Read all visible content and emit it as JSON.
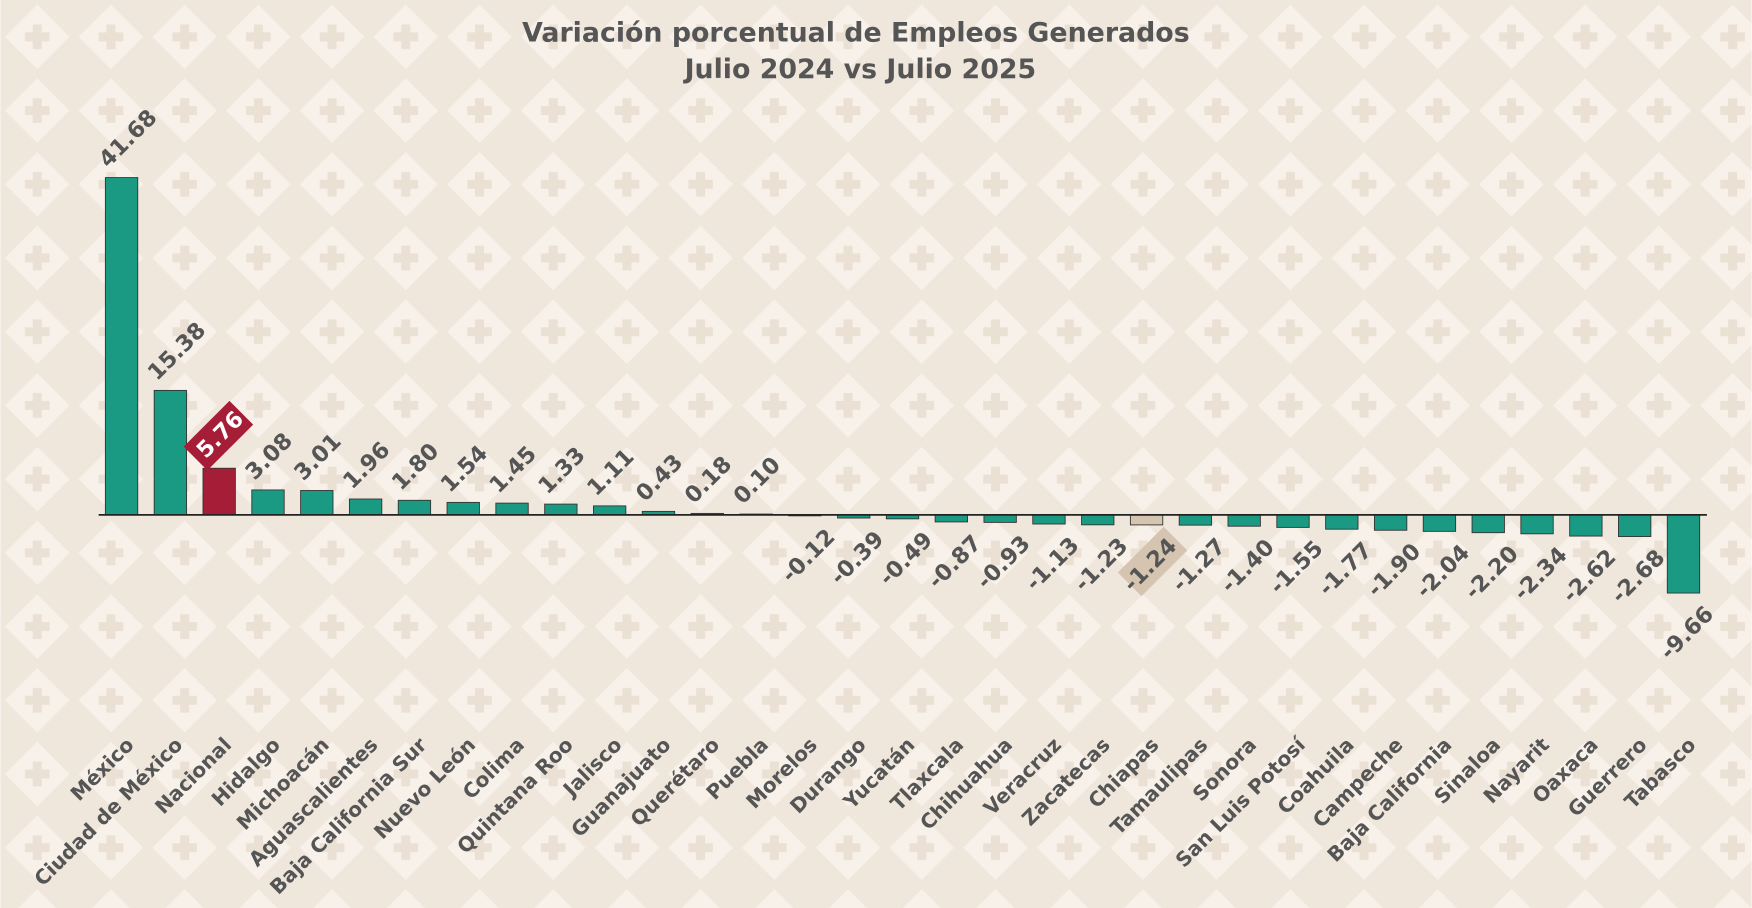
{
  "chart_data": {
    "type": "bar",
    "title": "Variación porcentual de Empleos Generados",
    "subtitle": "Julio 2024 vs Julio 2025",
    "categories": [
      "México",
      "Ciudad de México",
      "Nacional",
      "Hidalgo",
      "Michoacán",
      "Aguascalientes",
      "Baja California Sur",
      "Nuevo León",
      "Colima",
      "Quintana Roo",
      "Jalisco",
      "Guanajuato",
      "Querétaro",
      "Puebla",
      "Morelos",
      "Durango",
      "Yucatán",
      "Tlaxcala",
      "Chihuahua",
      "Veracruz",
      "Zacatecas",
      "Chiapas",
      "Tamaulipas",
      "Sonora",
      "San Luis Potosí",
      "Coahuila",
      "Campeche",
      "Baja California",
      "Sinaloa",
      "Nayarit",
      "Oaxaca",
      "Guerrero",
      "Tabasco"
    ],
    "values": [
      41.68,
      15.38,
      5.76,
      3.08,
      3.01,
      1.96,
      1.8,
      1.54,
      1.45,
      1.33,
      1.11,
      0.43,
      0.18,
      0.1,
      -0.12,
      -0.39,
      -0.49,
      -0.87,
      -0.93,
      -1.13,
      -1.23,
      -1.24,
      -1.27,
      -1.4,
      -1.55,
      -1.77,
      -1.9,
      -2.04,
      -2.2,
      -2.34,
      -2.62,
      -2.68,
      -9.66
    ],
    "value_labels": [
      "41.68",
      "15.38",
      "5.76",
      "3.08",
      "3.01",
      "1.96",
      "1.80",
      "1.54",
      "1.45",
      "1.33",
      "1.11",
      "0.43",
      "0.18",
      "0.10",
      "-0.12",
      "-0.39",
      "-0.49",
      "-0.87",
      "-0.93",
      "-1.13",
      "-1.23",
      "-1.24",
      "-1.27",
      "-1.40",
      "-1.55",
      "-1.77",
      "-1.90",
      "-2.04",
      "-2.20",
      "-2.34",
      "-2.62",
      "-2.68",
      "-9.66"
    ],
    "color": "#1a9a82",
    "colors": [
      "#1a9a82",
      "#1a9a82",
      "#a51d36",
      "#1a9a82",
      "#1a9a82",
      "#1a9a82",
      "#1a9a82",
      "#1a9a82",
      "#1a9a82",
      "#1a9a82",
      "#1a9a82",
      "#1a9a82",
      "#1a9a82",
      "#1a9a82",
      "#1a9a82",
      "#1a9a82",
      "#1a9a82",
      "#1a9a82",
      "#1a9a82",
      "#1a9a82",
      "#1a9a82",
      "#d4c4b0",
      "#1a9a82",
      "#1a9a82",
      "#1a9a82",
      "#1a9a82",
      "#1a9a82",
      "#1a9a82",
      "#1a9a82",
      "#1a9a82",
      "#1a9a82",
      "#1a9a82",
      "#1a9a82"
    ]
  }
}
